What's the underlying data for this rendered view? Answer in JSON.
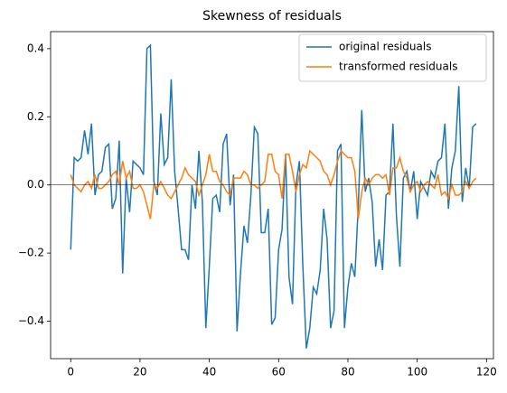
{
  "chart_data": {
    "type": "line",
    "title": "Skewness of residuals",
    "x": [
      0,
      1,
      2,
      3,
      4,
      5,
      6,
      7,
      8,
      9,
      10,
      11,
      12,
      13,
      14,
      15,
      16,
      17,
      18,
      19,
      20,
      21,
      22,
      23,
      24,
      25,
      26,
      27,
      28,
      29,
      30,
      31,
      32,
      33,
      34,
      35,
      36,
      37,
      38,
      39,
      40,
      41,
      42,
      43,
      44,
      45,
      46,
      47,
      48,
      49,
      50,
      51,
      52,
      53,
      54,
      55,
      56,
      57,
      58,
      59,
      60,
      61,
      62,
      63,
      64,
      65,
      66,
      67,
      68,
      69,
      70,
      71,
      72,
      73,
      74,
      75,
      76,
      77,
      78,
      79,
      80,
      81,
      82,
      83,
      84,
      85,
      86,
      87,
      88,
      89,
      90,
      91,
      92,
      93,
      94,
      95,
      96,
      97,
      98,
      99,
      100,
      101,
      102,
      103,
      104,
      105,
      106,
      107,
      108,
      109,
      110,
      111,
      112,
      113,
      114,
      115,
      116,
      117
    ],
    "series": [
      {
        "name": "original residuals",
        "color": "#1f77b4",
        "values": [
          -0.19,
          0.08,
          0.07,
          0.08,
          0.16,
          0.09,
          0.18,
          -0.03,
          0.03,
          0.04,
          0.11,
          0.12,
          -0.07,
          -0.04,
          0.13,
          -0.26,
          0.02,
          -0.08,
          0.07,
          0.06,
          0.05,
          0.03,
          0.4,
          0.41,
          0.01,
          -0.03,
          0.21,
          0.06,
          0.08,
          0.31,
          0.04,
          -0.07,
          -0.19,
          -0.19,
          -0.22,
          0.0,
          -0.07,
          0.1,
          -0.05,
          -0.42,
          -0.24,
          -0.04,
          -0.03,
          -0.08,
          0.12,
          0.15,
          -0.06,
          0.03,
          -0.43,
          -0.26,
          -0.12,
          -0.17,
          -0.03,
          0.17,
          0.15,
          -0.14,
          -0.14,
          -0.07,
          -0.41,
          -0.39,
          -0.19,
          -0.13,
          0.09,
          -0.27,
          -0.35,
          0.0,
          0.07,
          -0.24,
          -0.48,
          -0.42,
          -0.3,
          -0.32,
          -0.25,
          -0.07,
          -0.16,
          -0.42,
          -0.37,
          0.1,
          0.12,
          -0.42,
          -0.3,
          -0.23,
          -0.27,
          -0.06,
          0.22,
          -0.02,
          0.02,
          -0.05,
          -0.24,
          -0.16,
          -0.25,
          -0.03,
          -0.02,
          0.18,
          -0.09,
          -0.24,
          0.02,
          0.04,
          -0.02,
          0.04,
          -0.1,
          0.01,
          -0.01,
          -0.03,
          0.04,
          0.02,
          0.07,
          0.08,
          0.18,
          -0.07,
          0.05,
          0.1,
          0.29,
          -0.05,
          0.05,
          -0.01,
          0.17,
          0.18
        ]
      },
      {
        "name": "transformed residuals",
        "color": "#ff7f0e",
        "values": [
          0.03,
          0.0,
          -0.01,
          -0.02,
          0.0,
          0.01,
          -0.01,
          0.03,
          -0.01,
          -0.01,
          0.0,
          0.01,
          0.03,
          0.04,
          0.0,
          0.07,
          0.02,
          0.04,
          -0.01,
          -0.01,
          0.0,
          -0.02,
          -0.06,
          -0.1,
          0.0,
          -0.01,
          0.01,
          -0.01,
          -0.03,
          -0.04,
          -0.02,
          0.0,
          0.02,
          0.05,
          0.03,
          0.02,
          0.01,
          -0.03,
          0.0,
          0.03,
          0.09,
          0.04,
          0.04,
          0.01,
          0.0,
          -0.02,
          -0.03,
          0.02,
          0.02,
          0.02,
          0.04,
          0.03,
          0.0,
          0.0,
          -0.01,
          0.0,
          0.01,
          0.09,
          0.09,
          0.04,
          0.03,
          -0.04,
          0.09,
          0.09,
          0.04,
          -0.02,
          0.03,
          0.06,
          0.05,
          0.1,
          0.09,
          0.08,
          0.07,
          0.04,
          0.03,
          0.0,
          0.03,
          0.07,
          0.1,
          0.09,
          0.08,
          0.08,
          0.04,
          -0.1,
          -0.02,
          0.02,
          0.0,
          0.02,
          0.03,
          0.03,
          0.02,
          0.03,
          -0.03,
          0.05,
          0.05,
          0.08,
          0.04,
          0.02,
          -0.02,
          0.0,
          0.01,
          -0.02,
          0.0,
          0.01,
          0.0,
          -0.01,
          0.03,
          -0.03,
          -0.02,
          -0.04,
          0.0,
          -0.03,
          -0.03,
          -0.02,
          0.01,
          -0.01,
          0.01,
          0.02
        ]
      }
    ],
    "xlim": [
      -5.8,
      122
    ],
    "ylim": [
      -0.51,
      0.45
    ],
    "xticks": [
      0,
      20,
      40,
      60,
      80,
      100,
      120
    ],
    "yticks": [
      {
        "value": -0.4,
        "label": "−0.4"
      },
      {
        "value": -0.2,
        "label": "−0.2"
      },
      {
        "value": 0,
        "label": "0.0"
      },
      0.2,
      0.4
    ],
    "hline": 0,
    "legend": "upper-right"
  }
}
